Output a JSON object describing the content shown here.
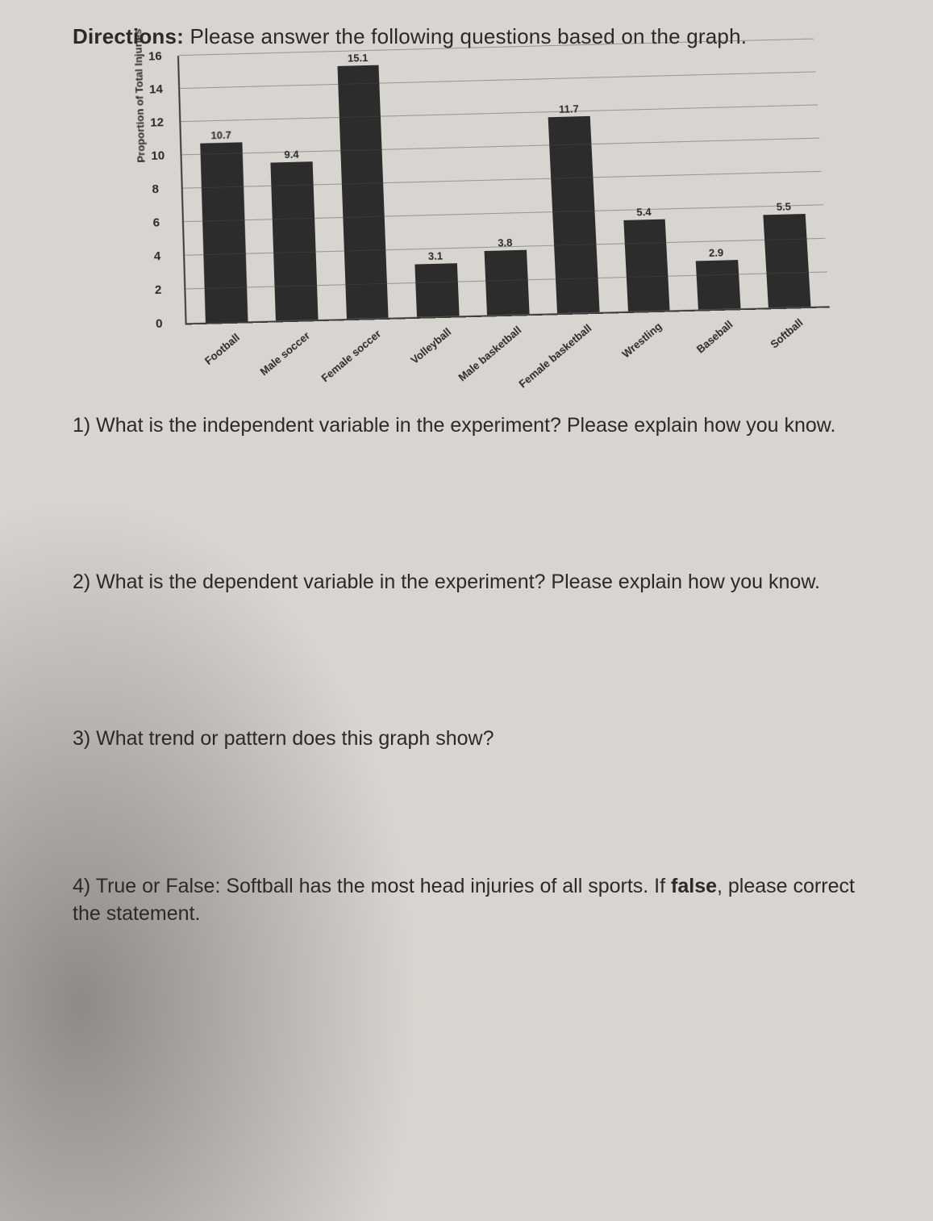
{
  "directions_prefix": "Directions:",
  "directions_text": " Please answer the following questions based on the graph.",
  "chart": {
    "type": "bar",
    "ylabel": "Proportion of Total Injuries",
    "ylim": [
      0,
      16
    ],
    "ytick_step": 2,
    "yticks": [
      0,
      2,
      4,
      6,
      8,
      10,
      12,
      14,
      16
    ],
    "bar_width": 0.6,
    "bar_color": "#2c2c2c",
    "grid_color": "rgba(70,70,70,0.45)",
    "axis_color": "#3a3a3a",
    "background_color": "#d8d4cf",
    "value_label_fontsize": 13,
    "xlabel_fontsize": 13,
    "xlabel_rotation_deg": -38,
    "categories": [
      "Football",
      "Male soccer",
      "Female soccer",
      "Volleyball",
      "Male basketball",
      "Female basketball",
      "Wrestling",
      "Baseball",
      "Softball"
    ],
    "values": [
      10.7,
      9.4,
      15.1,
      3.1,
      3.8,
      11.7,
      5.4,
      2.9,
      5.5
    ]
  },
  "questions": {
    "q1": "1) What is the independent variable in the experiment? Please explain how you know.",
    "q2": "2) What is the dependent variable in the experiment? Please explain how you know.",
    "q3": "3) What trend or pattern does this graph show?",
    "q4_pre": "4) True or False: Softball has the most head injuries of all sports. If ",
    "q4_bold": "false",
    "q4_post": ", please correct the statement."
  }
}
